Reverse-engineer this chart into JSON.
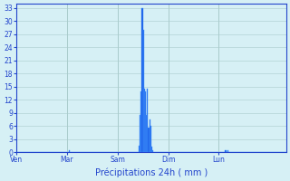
{
  "title": "Précipitations 24h ( mm )",
  "ylabel_values": [
    0,
    3,
    6,
    9,
    12,
    15,
    18,
    21,
    24,
    27,
    30,
    33
  ],
  "ylim": [
    0,
    34
  ],
  "background_color": "#d6f0f5",
  "bar_color": "#1a5ce6",
  "bar_edge_color": "#4499ff",
  "grid_color": "#aacccc",
  "text_color": "#2244cc",
  "day_labels": [
    "Ven",
    "Mar",
    "Sam",
    "Dim",
    "Lun"
  ],
  "day_positions": [
    0,
    48,
    96,
    144,
    192
  ],
  "num_bars": 240,
  "bar_values": [
    0,
    0,
    0,
    0,
    0,
    0,
    0,
    0,
    0,
    0,
    0,
    0,
    0,
    0,
    0,
    0,
    0,
    0,
    0,
    0,
    0,
    0,
    0,
    0,
    0,
    0,
    0,
    0,
    0,
    0,
    0,
    0,
    0,
    0,
    0,
    0,
    0,
    0,
    0,
    0,
    0,
    0,
    0,
    0,
    0,
    0,
    0,
    0,
    0,
    0,
    0.4,
    0,
    0,
    0,
    0,
    0,
    0,
    0,
    0,
    0,
    0,
    0,
    0,
    0,
    0,
    0,
    0,
    0,
    0,
    0,
    0,
    0,
    0,
    0,
    0,
    0,
    0,
    0,
    0,
    0,
    0,
    0,
    0,
    0,
    0,
    0,
    0,
    0,
    0,
    0,
    0,
    0,
    0,
    0,
    0,
    0,
    0,
    0,
    0,
    0,
    0,
    0,
    0,
    0,
    0,
    0,
    0,
    0,
    0,
    0,
    0,
    0,
    0,
    0,
    0,
    0,
    1.5,
    8.5,
    14,
    33,
    28,
    14.5,
    14,
    8.5,
    14.5,
    5.5,
    7.5,
    6,
    1.2,
    0.5,
    0,
    0,
    0,
    0,
    0,
    0,
    0,
    0,
    0,
    0,
    0,
    0,
    0,
    0,
    0,
    0,
    0,
    0,
    0,
    0,
    0,
    0,
    0,
    0,
    0,
    0,
    0,
    0,
    0,
    0,
    0,
    0,
    0,
    0,
    0,
    0,
    0,
    0,
    0,
    0,
    0,
    0,
    0,
    0,
    0,
    0,
    0,
    0,
    0,
    0,
    0,
    0,
    0,
    0,
    0,
    0,
    0,
    0,
    0,
    0,
    0,
    0,
    0,
    0,
    0,
    0,
    0,
    0,
    0.4,
    0,
    0.5,
    0,
    0,
    0,
    0,
    0,
    0,
    0,
    0,
    0,
    0,
    0,
    0,
    0,
    0,
    0,
    0,
    0,
    0,
    0,
    0,
    0,
    0,
    0,
    0,
    0,
    0,
    0,
    0,
    0,
    0,
    0,
    0,
    0,
    0,
    0,
    0,
    0,
    0,
    0,
    0,
    0,
    0,
    0,
    0,
    0,
    0,
    0,
    0,
    0,
    0,
    0,
    0,
    0,
    0,
    0
  ]
}
